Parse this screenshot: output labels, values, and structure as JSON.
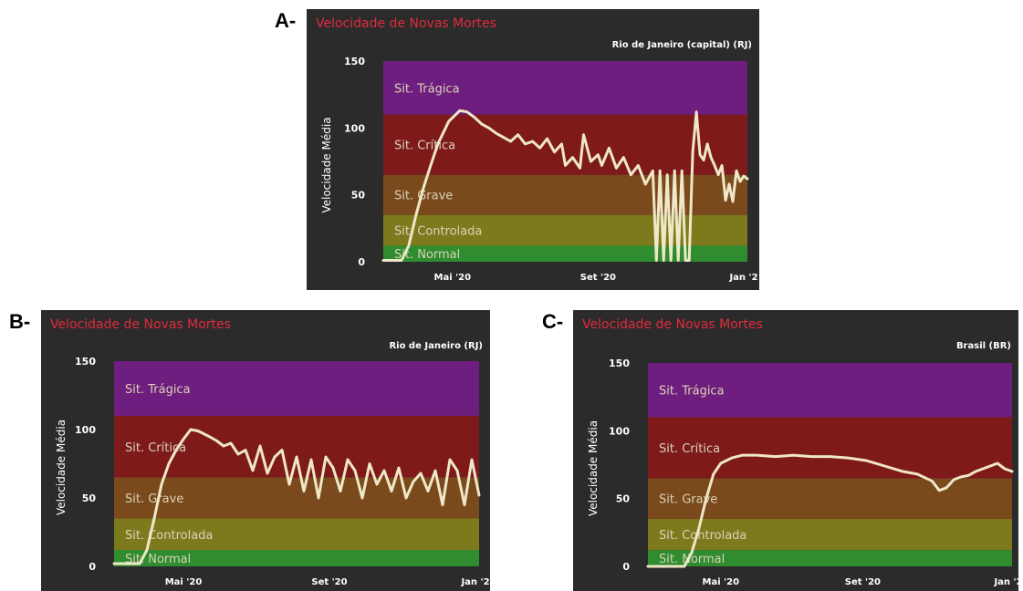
{
  "panels": [
    {
      "letter": "A-"
    },
    {
      "letter": "B-"
    },
    {
      "letter": "C-"
    }
  ],
  "chart_data": [
    {
      "type": "line",
      "title": "Velocidade de Novas Mortes",
      "subtitle": "Rio de Janeiro (capital) (RJ)",
      "ylabel": "Velocidade Média",
      "xlabel": "",
      "ylim": [
        0,
        150
      ],
      "yticks": [
        0,
        50,
        100,
        150
      ],
      "xticks": [
        "Mai '20",
        "Set '20",
        "Jan '2"
      ],
      "xtick_positions": [
        0.19,
        0.59,
        0.99
      ],
      "bands": [
        {
          "label": "Sit. Normal",
          "from": 0,
          "to": 12,
          "color": "#2f8c2f"
        },
        {
          "label": "Sit. Controlada",
          "from": 12,
          "to": 35,
          "color": "#7d7a1e"
        },
        {
          "label": "Sit. Grave",
          "from": 35,
          "to": 65,
          "color": "#7a4a1c"
        },
        {
          "label": "Sit. Crítica",
          "from": 65,
          "to": 110,
          "color": "#7e1a1a"
        },
        {
          "label": "Sit. Trágica",
          "from": 110,
          "to": 150,
          "color": "#6e1e7e"
        }
      ],
      "series": [
        {
          "x": [
            0,
            0.05,
            0.07,
            0.09,
            0.11,
            0.13,
            0.15,
            0.18,
            0.21,
            0.23,
            0.25,
            0.27,
            0.29,
            0.31,
            0.33,
            0.35,
            0.37,
            0.39,
            0.41,
            0.43,
            0.45,
            0.47,
            0.49,
            0.5,
            0.52,
            0.54,
            0.55,
            0.57,
            0.59,
            0.6,
            0.62,
            0.64,
            0.66,
            0.68,
            0.7,
            0.72,
            0.74,
            0.75,
            0.76,
            0.77,
            0.78,
            0.79,
            0.8,
            0.81,
            0.82,
            0.83,
            0.84,
            0.85,
            0.86,
            0.87,
            0.88,
            0.89,
            0.9,
            0.91,
            0.92,
            0.93,
            0.94,
            0.95,
            0.96,
            0.97,
            0.98,
            0.99,
            1.0
          ],
          "values": [
            1,
            1,
            12,
            35,
            55,
            72,
            88,
            105,
            113,
            112,
            108,
            103,
            100,
            96,
            93,
            90,
            95,
            88,
            90,
            85,
            92,
            82,
            88,
            72,
            78,
            70,
            95,
            75,
            80,
            72,
            85,
            70,
            78,
            65,
            72,
            58,
            68,
            1,
            68,
            1,
            65,
            1,
            68,
            1,
            68,
            1,
            1,
            82,
            112,
            80,
            76,
            88,
            78,
            72,
            65,
            72,
            46,
            58,
            45,
            68,
            60,
            64,
            62
          ]
        }
      ]
    },
    {
      "type": "line",
      "title": "Velocidade de Novas Mortes",
      "subtitle": "Rio de Janeiro (RJ)",
      "ylabel": "Velocidade Média",
      "xlabel": "",
      "ylim": [
        0,
        150
      ],
      "yticks": [
        0,
        50,
        100,
        150
      ],
      "xticks": [
        "Mai '20",
        "Set '20",
        "Jan '2"
      ],
      "xtick_positions": [
        0.19,
        0.59,
        0.99
      ],
      "bands": [
        {
          "label": "Sit. Normal",
          "from": 0,
          "to": 12,
          "color": "#2f8c2f"
        },
        {
          "label": "Sit. Controlada",
          "from": 12,
          "to": 35,
          "color": "#7d7a1e"
        },
        {
          "label": "Sit. Grave",
          "from": 35,
          "to": 65,
          "color": "#7a4a1c"
        },
        {
          "label": "Sit. Crítica",
          "from": 65,
          "to": 110,
          "color": "#7e1a1a"
        },
        {
          "label": "Sit. Trágica",
          "from": 110,
          "to": 150,
          "color": "#6e1e7e"
        }
      ],
      "series": [
        {
          "x": [
            0,
            0.07,
            0.09,
            0.11,
            0.13,
            0.15,
            0.17,
            0.19,
            0.21,
            0.23,
            0.26,
            0.28,
            0.3,
            0.32,
            0.34,
            0.36,
            0.38,
            0.4,
            0.42,
            0.44,
            0.46,
            0.48,
            0.5,
            0.52,
            0.54,
            0.56,
            0.58,
            0.6,
            0.62,
            0.64,
            0.66,
            0.68,
            0.7,
            0.72,
            0.74,
            0.76,
            0.78,
            0.8,
            0.82,
            0.84,
            0.86,
            0.88,
            0.9,
            0.92,
            0.94,
            0.96,
            0.98,
            1.0
          ],
          "values": [
            2,
            2,
            12,
            35,
            60,
            75,
            85,
            93,
            100,
            99,
            95,
            92,
            88,
            90,
            82,
            85,
            70,
            88,
            68,
            80,
            85,
            60,
            80,
            55,
            78,
            50,
            80,
            72,
            55,
            78,
            70,
            50,
            75,
            60,
            70,
            55,
            72,
            50,
            62,
            68,
            55,
            70,
            45,
            78,
            70,
            45,
            78,
            52
          ]
        }
      ]
    },
    {
      "type": "line",
      "title": "Velocidade de Novas Mortes",
      "subtitle": "Brasil (BR)",
      "ylabel": "Velocidade Média",
      "xlabel": "",
      "ylim": [
        0,
        150
      ],
      "yticks": [
        0,
        50,
        100,
        150
      ],
      "xticks": [
        "Mai '20",
        "Set '20",
        "Jan '2"
      ],
      "xtick_positions": [
        0.2,
        0.59,
        0.99
      ],
      "bands": [
        {
          "label": "Sit. Normal",
          "from": 0,
          "to": 12,
          "color": "#2f8c2f"
        },
        {
          "label": "Sit. Controlada",
          "from": 12,
          "to": 35,
          "color": "#7d7a1e"
        },
        {
          "label": "Sit. Grave",
          "from": 35,
          "to": 65,
          "color": "#7a4a1c"
        },
        {
          "label": "Sit. Crítica",
          "from": 65,
          "to": 110,
          "color": "#7e1a1a"
        },
        {
          "label": "Sit. Trágica",
          "from": 110,
          "to": 150,
          "color": "#6e1e7e"
        }
      ],
      "series": [
        {
          "x": [
            0,
            0.1,
            0.12,
            0.14,
            0.16,
            0.18,
            0.2,
            0.23,
            0.26,
            0.3,
            0.35,
            0.4,
            0.45,
            0.5,
            0.55,
            0.6,
            0.65,
            0.7,
            0.74,
            0.78,
            0.8,
            0.82,
            0.84,
            0.86,
            0.88,
            0.9,
            0.93,
            0.96,
            0.98,
            1.0
          ],
          "values": [
            0,
            0,
            10,
            28,
            50,
            68,
            76,
            80,
            82,
            82,
            81,
            82,
            81,
            81,
            80,
            78,
            74,
            70,
            68,
            63,
            56,
            58,
            64,
            66,
            67,
            70,
            73,
            76,
            72,
            70
          ]
        }
      ]
    }
  ]
}
